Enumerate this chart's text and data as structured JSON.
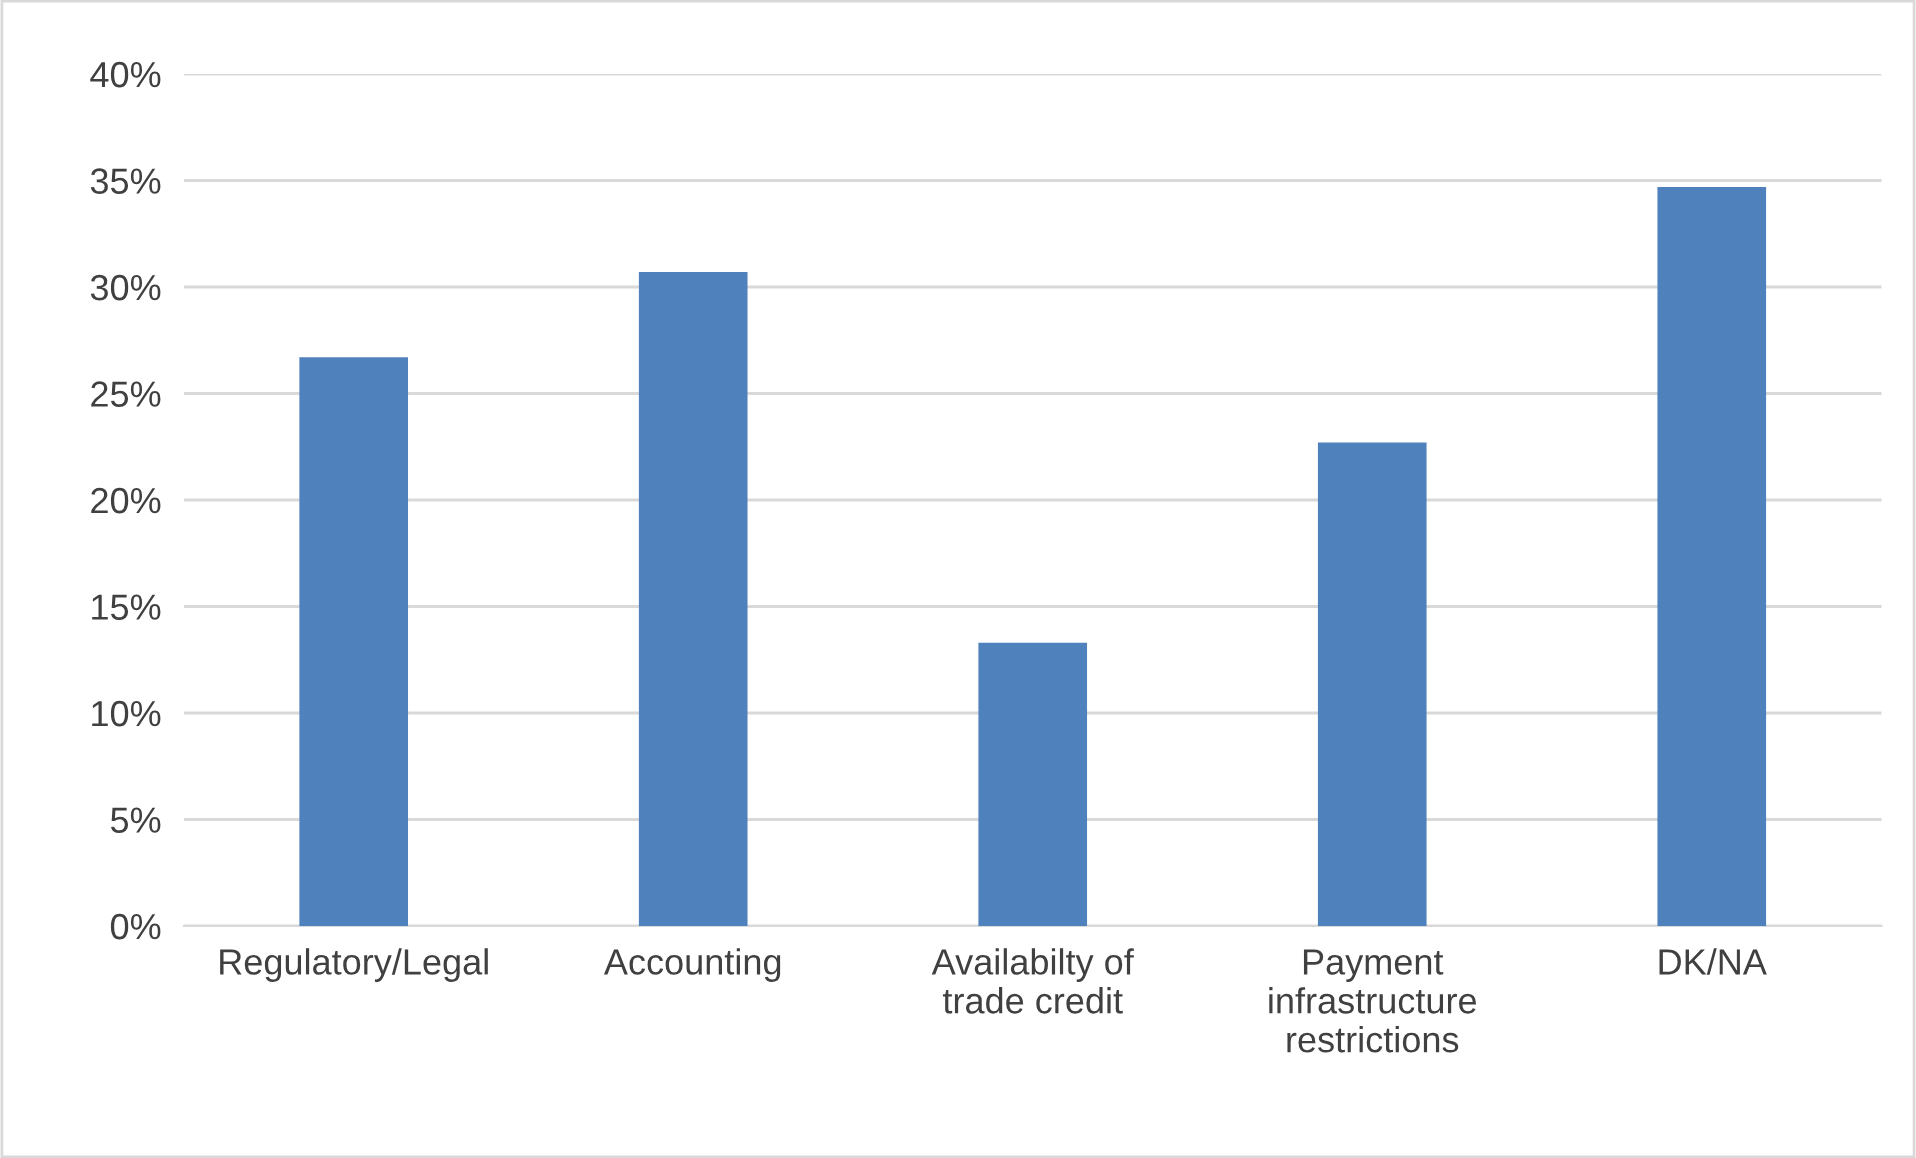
{
  "chart_data": {
    "type": "bar",
    "categories": [
      "Regulatory/Legal",
      "Accounting",
      "Availabilty of\ntrade credit",
      "Payment\ninfrastructure\nrestrictions",
      "DK/NA"
    ],
    "values": [
      26.7,
      30.7,
      13.3,
      22.7,
      34.7
    ],
    "color": "#4f81bd",
    "ylim": [
      0,
      40
    ],
    "yticks": [
      {
        "value": 0,
        "label": "0%"
      },
      {
        "value": 5,
        "label": "5%"
      },
      {
        "value": 10,
        "label": "10%"
      },
      {
        "value": 15,
        "label": "15%"
      },
      {
        "value": 20,
        "label": "20%"
      },
      {
        "value": 25,
        "label": "25%"
      },
      {
        "value": 30,
        "label": "30%"
      },
      {
        "value": 35,
        "label": "35%"
      },
      {
        "value": 40,
        "label": "40%"
      }
    ],
    "grid": "y",
    "legend": false
  }
}
